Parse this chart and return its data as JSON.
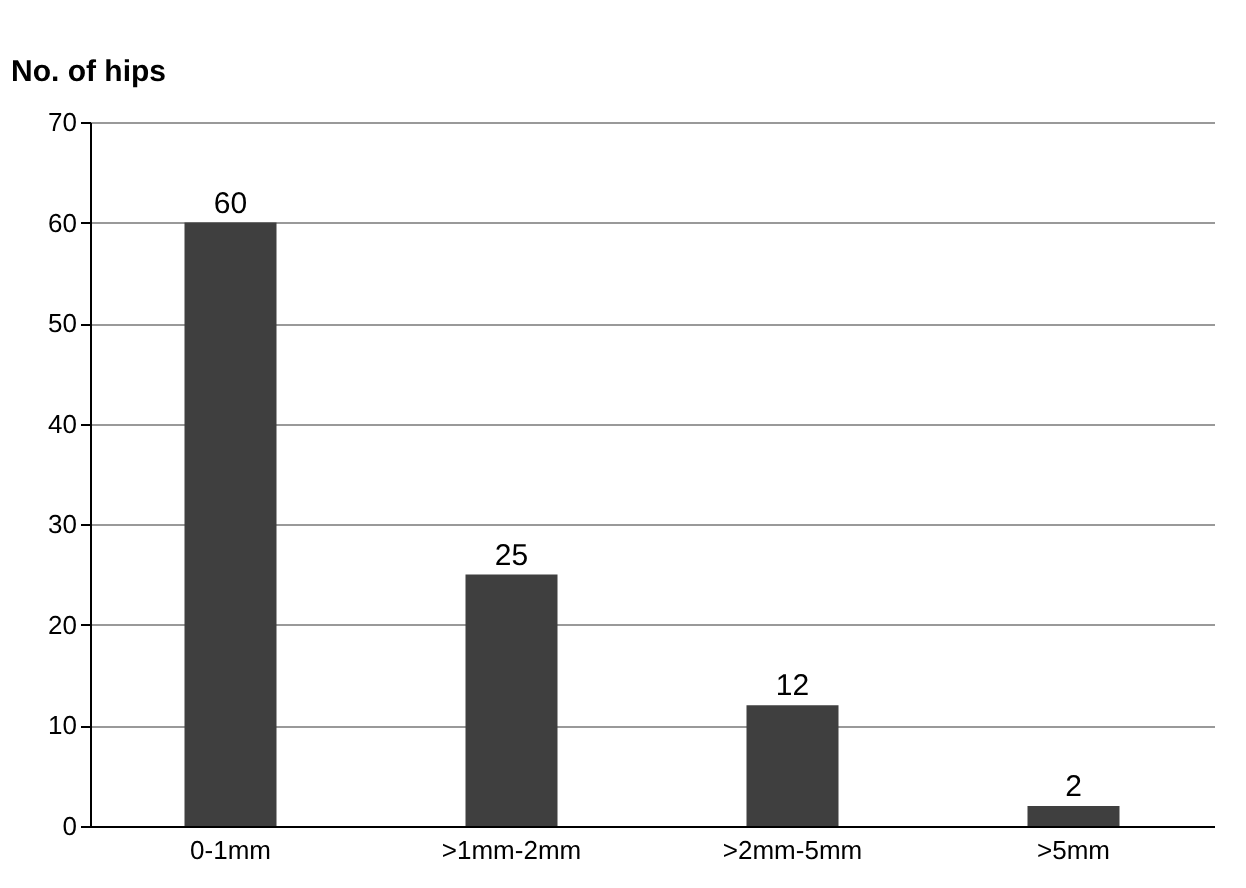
{
  "chart_data": {
    "type": "bar",
    "ylabel": "No. of hips",
    "categories": [
      "0-1mm",
      ">1mm-2mm",
      ">2mm-5mm",
      ">5mm"
    ],
    "values": [
      60,
      25,
      12,
      2
    ],
    "color": "#3f3f3f",
    "ylim": [
      0,
      70
    ],
    "yticks": [
      0,
      10,
      20,
      30,
      40,
      50,
      60,
      70
    ],
    "grid": "y",
    "data_labels": true
  }
}
